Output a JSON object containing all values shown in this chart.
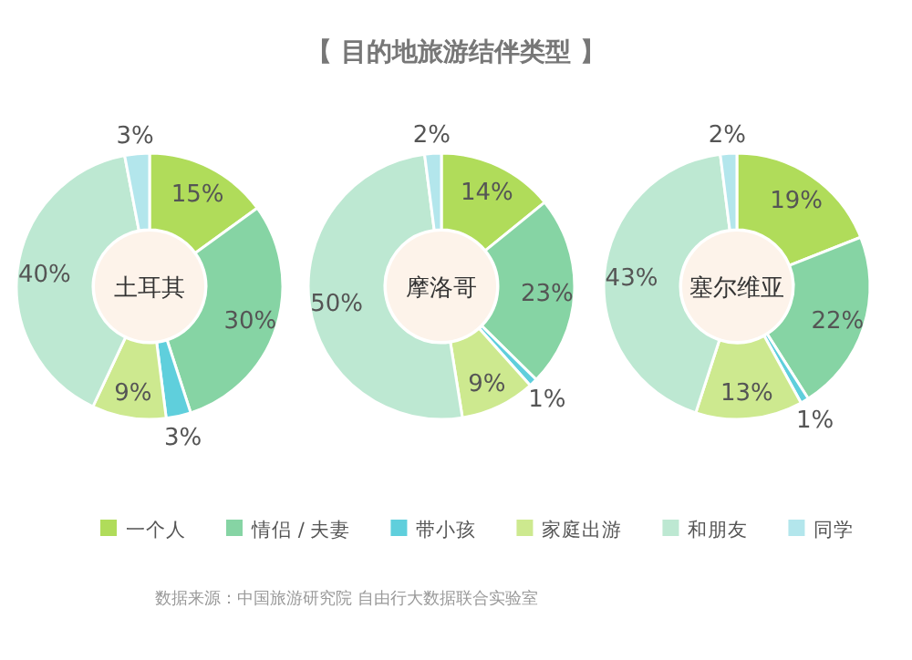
{
  "chart_data": [
    {
      "type": "donut",
      "title": "土耳其",
      "categories": [
        "一个人",
        "情侣 / 夫妻",
        "带小孩",
        "家庭出游",
        "和朋友",
        "同学"
      ],
      "values": [
        15,
        30,
        3,
        9,
        40,
        3
      ],
      "value_labels": [
        "15%",
        "30%",
        "3%",
        "9%",
        "40%",
        "3%"
      ],
      "colors": [
        "#b0dc5a",
        "#86d4a4",
        "#5fcfdc",
        "#cde98f",
        "#bde8d2",
        "#b3e6ec"
      ],
      "legend": "bottom"
    },
    {
      "type": "donut",
      "title": "摩洛哥",
      "categories": [
        null,
        null,
        null,
        null,
        null,
        null
      ],
      "values": [
        14,
        23,
        1,
        9,
        50,
        2
      ],
      "value_labels": [
        "14%",
        "23%",
        "1%",
        "9%",
        "50%",
        "2%"
      ],
      "colors": [
        "#b0dc5a",
        "#86d4a4",
        "#5fcfdc",
        "#cde98f",
        "#bde8d2",
        "#b3e6ec"
      ]
    },
    {
      "type": "donut",
      "title": "塞尔维亚",
      "categories": [
        null,
        null,
        null,
        null,
        null,
        null
      ],
      "values": [
        19,
        22,
        1,
        13,
        43,
        2
      ],
      "value_labels": [
        "19%",
        "22%",
        "1%",
        "13%",
        "43%",
        "2%"
      ],
      "colors": [
        "#b0dc5a",
        "#86d4a4",
        "#5fcfdc",
        "#cde98f",
        "#bde8d2",
        "#b3e6ec"
      ]
    },
    {
      "type": "other",
      "title": "【 目的地旅游结伴类型 】",
      "annotations": [
        "数据来源：中国旅游研究院 自由行大数据联合实验室"
      ]
    }
  ]
}
